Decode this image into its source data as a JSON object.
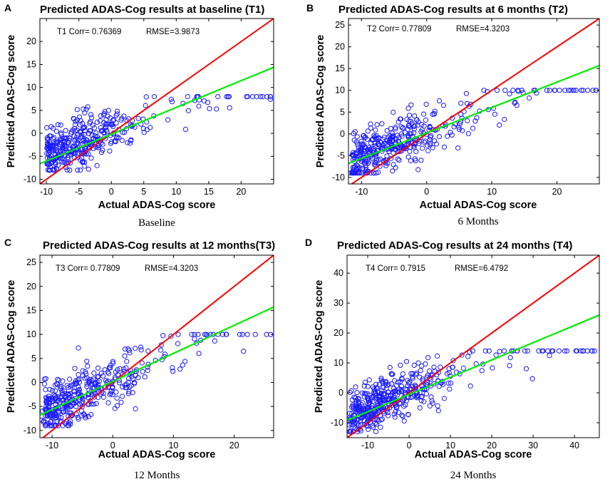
{
  "colors": {
    "identity_line": "#ff0000",
    "fit_line": "#00ee00",
    "points": "#1a1aff"
  },
  "chart_data": [
    {
      "type": "scatter",
      "panel": "A",
      "title": "Predicted ADAS-Cog results at baseline (T1)",
      "xlabel": "Actual ADAS-Cog score",
      "ylabel": "Predicted ADAS-Cog score",
      "caption": "Baseline",
      "annotation": {
        "corr": "T1 Corr= 0.76369",
        "rmse": "RMSE=3.9873"
      },
      "xlim": [
        -11,
        25
      ],
      "ylim": [
        -11,
        25
      ],
      "xticks": [
        -10,
        -5,
        0,
        5,
        10,
        15,
        20
      ],
      "yticks": [
        -10,
        -5,
        0,
        5,
        10,
        15,
        20
      ],
      "identity_line": {
        "x": [
          -11,
          25
        ],
        "y": [
          -11,
          25
        ]
      },
      "fit_line": {
        "x": [
          -11,
          25
        ],
        "y": [
          -6.6,
          14.4
        ]
      },
      "point_spec": {
        "count": 380,
        "x_range": [
          -10.5,
          25
        ],
        "slope": 0.5,
        "intercept": 0.5,
        "noise_sd": 2.6,
        "y_clip": [
          -8,
          8
        ],
        "seed": 11
      }
    },
    {
      "type": "scatter",
      "panel": "B",
      "title": "Predicted ADAS-Cog results at 6 months (T2)",
      "xlabel": "Actual ADAS-Cog score",
      "ylabel": "Predicted ADAS-Cog score",
      "caption": "6 Months",
      "annotation": {
        "corr": "T2 Corr= 0.77809",
        "rmse": "RMSE=4.3203"
      },
      "xlim": [
        -12,
        26.5
      ],
      "ylim": [
        -11.5,
        26.5
      ],
      "xticks": [
        -10,
        0,
        10,
        20
      ],
      "yticks": [
        -10,
        -5,
        0,
        5,
        10,
        15,
        20,
        25
      ],
      "identity_line": {
        "x": [
          -12,
          26.5
        ],
        "y": [
          -12,
          26.5
        ]
      },
      "fit_line": {
        "x": [
          -12,
          26.5
        ],
        "y": [
          -6.8,
          15.7
        ]
      },
      "point_spec": {
        "count": 400,
        "x_range": [
          -12,
          26.5
        ],
        "slope": 0.6,
        "intercept": 0.5,
        "noise_sd": 2.8,
        "y_clip": [
          -9,
          10
        ],
        "seed": 22
      }
    },
    {
      "type": "scatter",
      "panel": "C",
      "title": "Predicted ADAS-Cog results at 12 months(T3)",
      "xlabel": "Actual ADAS-Cog score",
      "ylabel": "Predicted ADAS-Cog score",
      "caption": "12 Months",
      "annotation": {
        "corr": "T3 Corr= 0.77809",
        "rmse": "RMSE=4.3203"
      },
      "xlim": [
        -12,
        26.5
      ],
      "ylim": [
        -11.5,
        26.5
      ],
      "xticks": [
        -10,
        0,
        10,
        20
      ],
      "yticks": [
        -10,
        -5,
        0,
        5,
        10,
        15,
        20,
        25
      ],
      "identity_line": {
        "x": [
          -12,
          26.5
        ],
        "y": [
          -12,
          26.5
        ]
      },
      "fit_line": {
        "x": [
          -12,
          26.5
        ],
        "y": [
          -6.8,
          15.7
        ]
      },
      "point_spec": {
        "count": 400,
        "x_range": [
          -12,
          26.5
        ],
        "slope": 0.6,
        "intercept": 0.5,
        "noise_sd": 2.8,
        "y_clip": [
          -9,
          10
        ],
        "seed": 33
      }
    },
    {
      "type": "scatter",
      "panel": "D",
      "title": "Predicted ADAS-Cog results at 24 months (T4)",
      "xlabel": "Actual ADAS-Cog score",
      "ylabel": "Predicted ADAS-Cog score",
      "caption": "24 Months",
      "annotation": {
        "corr": "T4 Corr= 0.7915",
        "rmse": "RMSE=6.4792"
      },
      "xlim": [
        -15,
        46
      ],
      "ylim": [
        -15,
        46
      ],
      "xticks": [
        -10,
        0,
        10,
        20,
        30,
        40
      ],
      "yticks": [
        -10,
        0,
        10,
        20,
        30,
        40
      ],
      "identity_line": {
        "x": [
          -15,
          46
        ],
        "y": [
          -15,
          46
        ]
      },
      "fit_line": {
        "x": [
          -15,
          46
        ],
        "y": [
          -9.2,
          26.0
        ]
      },
      "point_spec": {
        "count": 450,
        "x_range": [
          -15,
          46
        ],
        "slope": 0.58,
        "intercept": 0.5,
        "noise_sd": 4.0,
        "y_clip": [
          -13,
          14
        ],
        "seed": 44
      }
    }
  ]
}
